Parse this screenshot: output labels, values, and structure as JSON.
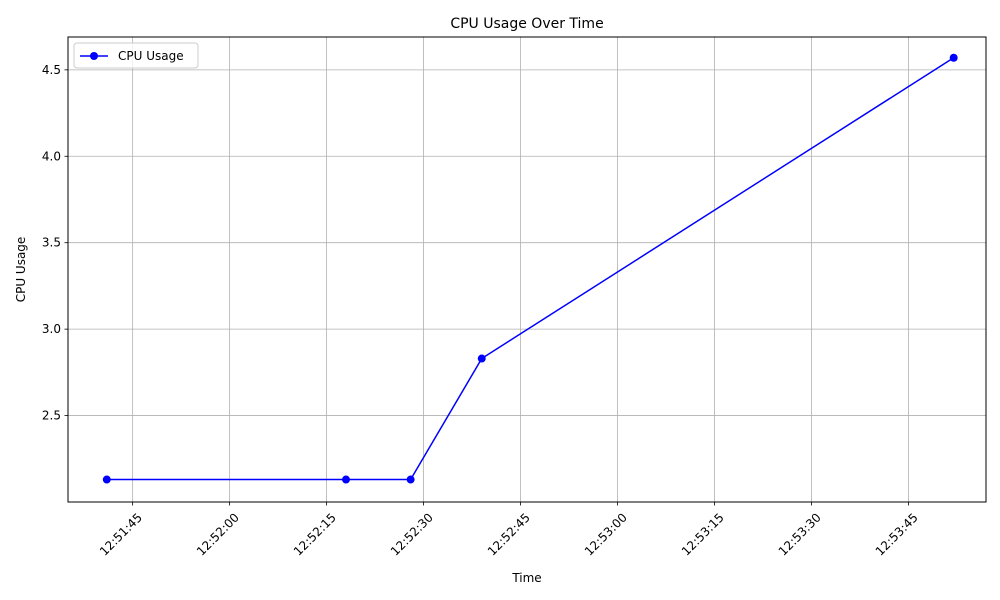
{
  "chart_data": {
    "type": "line",
    "title": "CPU Usage Over Time",
    "xlabel": "Time",
    "ylabel": "CPU Usage",
    "x_ticks": [
      "12:51:45",
      "12:52:00",
      "12:52:15",
      "12:52:30",
      "12:52:45",
      "12:53:00",
      "12:53:15",
      "12:53:30",
      "12:53:45"
    ],
    "y_ticks": [
      "2.5",
      "3.0",
      "3.5",
      "4.0",
      "4.5"
    ],
    "xlim": [
      "12:51:35",
      "12:53:57"
    ],
    "ylim": [
      2.0,
      4.69
    ],
    "grid": true,
    "legend_position": "top-left",
    "series": [
      {
        "name": "CPU Usage",
        "color": "#0000ff",
        "marker": "circle",
        "x": [
          "12:51:41",
          "12:52:18",
          "12:52:28",
          "12:52:39",
          "12:53:52"
        ],
        "y": [
          2.13,
          2.13,
          2.13,
          2.83,
          4.57
        ]
      }
    ]
  }
}
